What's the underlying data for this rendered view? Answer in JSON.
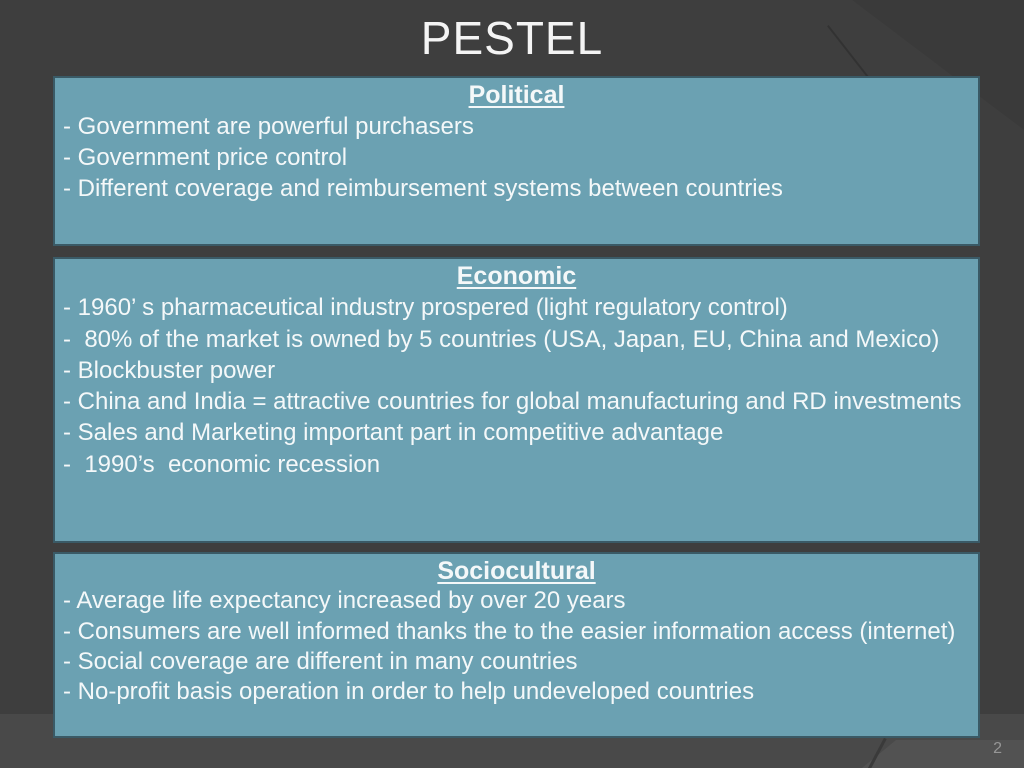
{
  "slide": {
    "title": "PESTEL",
    "page_number": "2",
    "sections": [
      {
        "header": "Political",
        "items": [
          "- Government are powerful purchasers",
          "- Government price control",
          "- Different coverage and reimbursement systems between countries"
        ]
      },
      {
        "header": "Economic",
        "items": [
          "- 1960’ s pharmaceutical industry prospered (light regulatory control)",
          "-  80% of the market is owned by 5 countries (USA, Japan, EU, China and Mexico)",
          "- Blockbuster power",
          "- China and India = attractive countries for global manufacturing and RD investments",
          "- Sales and Marketing important part in competitive advantage",
          "-  1990’s  economic recession"
        ]
      },
      {
        "header": "Sociocultural",
        "items": [
          "- Average life expectancy increased by over 20 years",
          "- Consumers are well informed thanks the to the easier information access (internet)",
          "- Social coverage are different in many countries",
          "- No-profit basis operation in order to help undeveloped countries"
        ]
      }
    ],
    "colors": {
      "background": "#3e3e3e",
      "footer_band": "#494949",
      "box_fill": "#6ba1b2",
      "box_border": "#3a5a66",
      "text": "#f4f8f9",
      "page_number": "#969696"
    }
  }
}
